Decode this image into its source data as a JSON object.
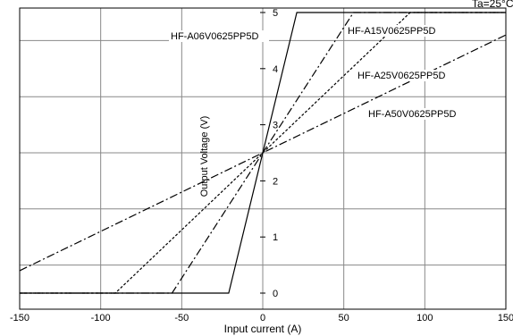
{
  "chart_data": {
    "type": "line",
    "xlabel": "Input current (A)",
    "ylabel": "Output Voltage (V)",
    "xlim": [
      -150,
      150
    ],
    "ylim": [
      0,
      5
    ],
    "x_ticks": [
      "-150",
      "-100",
      "-50",
      "0",
      "50",
      "100",
      "150"
    ],
    "y_ticks": [
      "0",
      "1",
      "2",
      "3",
      "4",
      "5"
    ],
    "grid": true,
    "corner_text": "Ta=25°C",
    "series": [
      {
        "name": "HF-A06V0625PP5D",
        "style": "solid",
        "x": [
          -150,
          -21,
          21,
          150
        ],
        "y": [
          0,
          0,
          5,
          5
        ]
      },
      {
        "name": "HF-A15V0625PP5D",
        "style": "dashdot",
        "x": [
          -150,
          -56,
          56,
          150
        ],
        "y": [
          0,
          0,
          5,
          5
        ]
      },
      {
        "name": "HF-A25V0625PP5D",
        "style": "dashed",
        "x": [
          -150,
          -91,
          91,
          150
        ],
        "y": [
          0,
          0,
          5,
          5
        ]
      },
      {
        "name": "HF-A50V0625PP5D",
        "style": "dashdot",
        "x": [
          -150,
          150
        ],
        "y": [
          0.4,
          4.6
        ]
      }
    ]
  }
}
